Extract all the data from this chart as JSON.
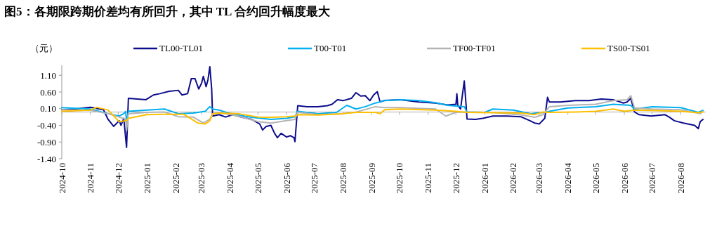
{
  "chart_data": {
    "type": "line",
    "title": "图5：各期限跨期价差均有所回升，其中 TL 合约回升幅度最大",
    "ylabel": "（元）",
    "legend": "top",
    "xlim": [
      "2024-10-01",
      "2026-08-28"
    ],
    "ylim": [
      -1.4,
      1.4
    ],
    "yticks": [
      {
        "value": 1.1,
        "label": "1.10"
      },
      {
        "value": 0.6,
        "label": "0.60"
      },
      {
        "value": 0.1,
        "label": "0.10"
      },
      {
        "value": -0.4,
        "label": "-0.40"
      },
      {
        "value": -0.9,
        "label": "-0.90"
      },
      {
        "value": -1.4,
        "label": "-1.40"
      }
    ],
    "xticks": [
      {
        "value": "2024-10-01",
        "label": "2024-10"
      },
      {
        "value": "2024-11-01",
        "label": "2024-11"
      },
      {
        "value": "2024-12-01",
        "label": "2024-12"
      },
      {
        "value": "2025-01-01",
        "label": "2025-01"
      },
      {
        "value": "2025-02-01",
        "label": "2025-02"
      },
      {
        "value": "2025-03-01",
        "label": "2025-03"
      },
      {
        "value": "2025-04-01",
        "label": "2025-04"
      },
      {
        "value": "2025-05-01",
        "label": "2025-05"
      },
      {
        "value": "2025-06-01",
        "label": "2025-06"
      },
      {
        "value": "2025-07-01",
        "label": "2025-07"
      },
      {
        "value": "2025-08-01",
        "label": "2025-08"
      },
      {
        "value": "2025-09-01",
        "label": "2025-09"
      },
      {
        "value": "2025-10-01",
        "label": "2025-10"
      },
      {
        "value": "2025-11-01",
        "label": "2025-11"
      },
      {
        "value": "2025-12-01",
        "label": "2025-12"
      },
      {
        "value": "2026-01-01",
        "label": "2026-01"
      },
      {
        "value": "2026-02-01",
        "label": "2026-02"
      },
      {
        "value": "2026-03-01",
        "label": "2026-03"
      },
      {
        "value": "2026-04-01",
        "label": "2026-04"
      },
      {
        "value": "2026-05-01",
        "label": "2026-05"
      },
      {
        "value": "2026-06-01",
        "label": "2026-06"
      },
      {
        "value": "2026-07-01",
        "label": "2026-07"
      },
      {
        "value": "2026-08-01",
        "label": "2026-08"
      }
    ],
    "series": [
      {
        "name": "TL00-TL01",
        "color": "#0c0c8c",
        "x": [
          "2024-10-01",
          "2024-10-15",
          "2024-11-01",
          "2024-11-15",
          "2024-11-20",
          "2024-11-26",
          "2024-12-02",
          "2024-12-04",
          "2024-12-07",
          "2024-12-10",
          "2024-12-12",
          "2024-12-31",
          "2025-01-08",
          "2025-01-15",
          "2025-01-25",
          "2025-02-04",
          "2025-02-08",
          "2025-02-14",
          "2025-02-18",
          "2025-02-22",
          "2025-02-26",
          "2025-03-01",
          "2025-03-03",
          "2025-03-06",
          "2025-03-08",
          "2025-03-10",
          "2025-03-12",
          "2025-03-13",
          "2025-03-20",
          "2025-03-27",
          "2025-04-04",
          "2025-04-14",
          "2025-04-24",
          "2025-05-03",
          "2025-05-06",
          "2025-05-10",
          "2025-05-15",
          "2025-05-19",
          "2025-05-22",
          "2025-05-26",
          "2025-06-01",
          "2025-06-05",
          "2025-06-09",
          "2025-06-10",
          "2025-06-13",
          "2025-06-23",
          "2025-07-05",
          "2025-07-15",
          "2025-07-20",
          "2025-07-26",
          "2025-08-01",
          "2025-08-10",
          "2025-08-15",
          "2025-08-20",
          "2025-08-25",
          "2025-08-30",
          "2025-09-03",
          "2025-09-07",
          "2025-09-10",
          "2025-09-15",
          "2025-10-02",
          "2025-10-22",
          "2025-11-09",
          "2025-11-22",
          "2025-12-01",
          "2025-12-02",
          "2025-12-03",
          "2025-12-06",
          "2025-12-10",
          "2025-12-12",
          "2025-12-13",
          "2025-12-22",
          "2025-12-30",
          "2026-01-10",
          "2026-01-25",
          "2026-02-09",
          "2026-02-19",
          "2026-02-24",
          "2026-03-01",
          "2026-03-07",
          "2026-03-10",
          "2026-03-12",
          "2026-03-24",
          "2026-04-09",
          "2026-04-24",
          "2026-05-07",
          "2026-05-20",
          "2026-05-31",
          "2026-06-04",
          "2026-06-08",
          "2026-06-12",
          "2026-06-17",
          "2026-06-30",
          "2026-07-15",
          "2026-07-20",
          "2026-07-25",
          "2026-08-04",
          "2026-08-16",
          "2026-08-20",
          "2026-08-22",
          "2026-08-25"
        ],
        "values": [
          0.07,
          0.09,
          0.14,
          0.07,
          -0.22,
          -0.43,
          -0.26,
          -0.4,
          -0.19,
          -1.06,
          0.41,
          0.37,
          0.51,
          0.55,
          0.62,
          0.65,
          0.51,
          0.55,
          1.0,
          1.0,
          0.69,
          0.86,
          1.07,
          0.76,
          0.97,
          1.36,
          0.69,
          -0.12,
          -0.08,
          -0.15,
          -0.08,
          -0.16,
          -0.22,
          -0.36,
          -0.54,
          -0.43,
          -0.4,
          -0.64,
          -0.77,
          -0.64,
          -0.75,
          -0.71,
          -0.77,
          -0.89,
          0.19,
          0.16,
          0.16,
          0.19,
          0.23,
          0.37,
          0.34,
          0.41,
          0.58,
          0.48,
          0.49,
          0.34,
          0.51,
          0.61,
          0.3,
          0.35,
          0.37,
          0.3,
          0.27,
          0.21,
          0.23,
          0.55,
          0.2,
          0.09,
          0.93,
          0.2,
          -0.21,
          -0.22,
          -0.19,
          -0.12,
          -0.12,
          -0.14,
          -0.26,
          -0.33,
          -0.36,
          -0.19,
          0.44,
          0.3,
          0.3,
          0.34,
          0.34,
          0.39,
          0.37,
          0.27,
          0.3,
          0.41,
          0.0,
          -0.08,
          -0.12,
          -0.08,
          -0.16,
          -0.26,
          -0.33,
          -0.4,
          -0.5,
          -0.29,
          -0.22
        ]
      },
      {
        "name": "T00-T01",
        "color": "#00b0f0",
        "x": [
          "2024-10-01",
          "2024-11-01",
          "2024-11-20",
          "2024-12-02",
          "2024-12-07",
          "2024-12-09",
          "2024-12-10",
          "2024-12-12",
          "2025-01-01",
          "2025-01-20",
          "2025-02-04",
          "2025-02-20",
          "2025-03-05",
          "2025-03-10",
          "2025-03-13",
          "2025-03-20",
          "2025-04-01",
          "2025-04-24",
          "2025-05-15",
          "2025-06-01",
          "2025-06-10",
          "2025-06-13",
          "2025-07-05",
          "2025-07-25",
          "2025-08-05",
          "2025-08-15",
          "2025-08-25",
          "2025-09-05",
          "2025-09-15",
          "2025-10-02",
          "2025-10-22",
          "2025-11-09",
          "2025-11-22",
          "2025-12-10",
          "2025-12-13",
          "2026-01-01",
          "2026-01-10",
          "2026-02-01",
          "2026-02-20",
          "2026-03-07",
          "2026-03-12",
          "2026-04-01",
          "2026-05-01",
          "2026-05-20",
          "2026-06-08",
          "2026-06-12",
          "2026-07-01",
          "2026-08-01",
          "2026-08-20",
          "2026-08-25"
        ],
        "values": [
          0.13,
          0.09,
          -0.05,
          -0.12,
          -0.05,
          0.02,
          -0.29,
          0.02,
          0.06,
          0.09,
          -0.05,
          -0.03,
          0.02,
          0.16,
          0.09,
          0.06,
          -0.05,
          -0.16,
          -0.22,
          -0.19,
          -0.14,
          0.02,
          -0.05,
          -0.01,
          0.2,
          0.09,
          0.16,
          0.27,
          0.34,
          0.37,
          0.34,
          0.28,
          0.2,
          0.16,
          0.0,
          -0.01,
          0.09,
          0.06,
          -0.05,
          -0.01,
          0.02,
          0.12,
          0.16,
          0.23,
          0.2,
          0.09,
          0.16,
          0.13,
          -0.01,
          0.05
        ]
      },
      {
        "name": "TF00-TF01",
        "color": "#b4b4b4",
        "x": [
          "2024-10-01",
          "2024-11-01",
          "2024-11-20",
          "2024-12-02",
          "2024-12-09",
          "2024-12-10",
          "2024-12-12",
          "2025-01-01",
          "2025-01-20",
          "2025-02-04",
          "2025-02-20",
          "2025-03-03",
          "2025-03-10",
          "2025-03-13",
          "2025-03-20",
          "2025-04-10",
          "2025-05-01",
          "2025-05-15",
          "2025-06-01",
          "2025-06-10",
          "2025-06-13",
          "2025-07-05",
          "2025-08-01",
          "2025-08-15",
          "2025-09-05",
          "2025-09-15",
          "2025-10-01",
          "2025-11-09",
          "2025-11-20",
          "2025-12-01",
          "2025-12-13",
          "2026-01-10",
          "2026-02-10",
          "2026-02-24",
          "2026-03-05",
          "2026-03-12",
          "2026-04-01",
          "2026-05-01",
          "2026-05-20",
          "2026-06-04",
          "2026-06-08",
          "2026-06-12",
          "2026-07-01",
          "2026-08-01",
          "2026-08-22",
          "2026-08-25"
        ],
        "values": [
          0.07,
          0.05,
          -0.05,
          -0.15,
          -0.22,
          -0.56,
          -0.05,
          -0.01,
          0.0,
          -0.14,
          -0.15,
          -0.33,
          -0.22,
          -0.05,
          -0.02,
          -0.12,
          -0.29,
          -0.33,
          -0.26,
          -0.22,
          -0.01,
          -0.08,
          -0.05,
          0.0,
          0.16,
          0.13,
          0.13,
          0.09,
          -0.12,
          -0.01,
          0.0,
          -0.01,
          -0.09,
          -0.16,
          -0.08,
          0.16,
          0.2,
          0.23,
          0.34,
          0.37,
          0.49,
          0.12,
          0.09,
          0.07,
          -0.05,
          0.02
        ]
      },
      {
        "name": "TS00-TS01",
        "color": "#ffc000",
        "x": [
          "2024-10-01",
          "2024-11-01",
          "2024-11-08",
          "2024-11-20",
          "2024-12-02",
          "2024-12-10",
          "2024-12-12",
          "2025-01-01",
          "2025-01-20",
          "2025-02-10",
          "2025-02-25",
          "2025-03-05",
          "2025-03-10",
          "2025-03-13",
          "2025-03-20",
          "2025-04-10",
          "2025-05-01",
          "2025-05-15",
          "2025-06-01",
          "2025-06-10",
          "2025-06-13",
          "2025-07-05",
          "2025-08-01",
          "2025-08-15",
          "2025-09-05",
          "2025-09-10",
          "2025-09-15",
          "2025-10-01",
          "2025-11-09",
          "2025-12-01",
          "2025-12-13",
          "2026-01-10",
          "2026-02-10",
          "2026-02-24",
          "2026-03-05",
          "2026-03-12",
          "2026-04-10",
          "2026-05-01",
          "2026-05-20",
          "2026-06-01",
          "2026-06-12",
          "2026-07-01",
          "2026-08-01",
          "2026-08-20",
          "2026-08-25"
        ],
        "values": [
          0.02,
          0.06,
          0.14,
          0.06,
          -0.29,
          -0.26,
          -0.19,
          -0.08,
          -0.07,
          -0.07,
          -0.33,
          -0.36,
          -0.26,
          -0.05,
          -0.03,
          -0.05,
          -0.15,
          -0.16,
          -0.14,
          -0.12,
          -0.08,
          -0.09,
          -0.05,
          -0.01,
          -0.01,
          -0.05,
          0.07,
          0.09,
          0.06,
          0.02,
          -0.01,
          -0.02,
          -0.03,
          -0.08,
          0.0,
          -0.01,
          0.0,
          0.02,
          0.09,
          0.02,
          0.06,
          0.05,
          0.02,
          -0.02,
          0.0
        ]
      }
    ]
  }
}
